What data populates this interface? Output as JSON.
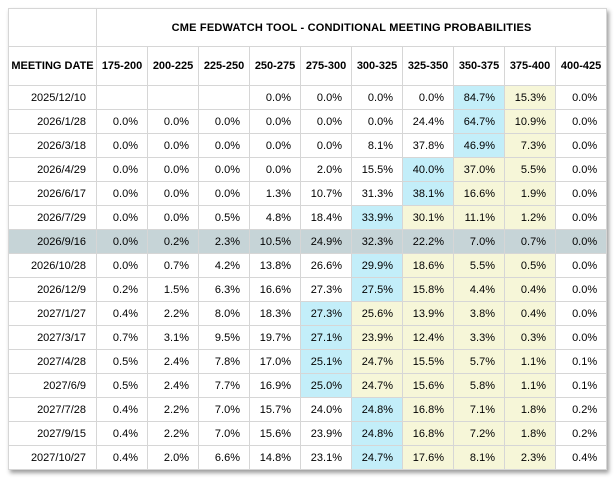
{
  "table": {
    "title": "CME FEDWATCH TOOL - CONDITIONAL MEETING PROBABILITIES",
    "date_header": "MEETING DATE",
    "rate_headers": [
      "175-200",
      "200-225",
      "225-250",
      "250-275",
      "275-300",
      "300-325",
      "325-350",
      "350-375",
      "375-400",
      "400-425"
    ],
    "colors": {
      "highlight_max": "#c3eef9",
      "highlight_tail": "#f6f6d8",
      "highlight_row": "#c6d4d7",
      "border": "#d6d6d6",
      "text": "#000000"
    },
    "rows": [
      {
        "date": "2025/12/10",
        "selected": false,
        "values": [
          "",
          "",
          "",
          "0.0%",
          "0.0%",
          "0.0%",
          "0.0%",
          "84.7%",
          "15.3%",
          "0.0%"
        ],
        "highlights": [
          "",
          "",
          "",
          "",
          "",
          "",
          "",
          "max",
          "tail",
          ""
        ]
      },
      {
        "date": "2026/1/28",
        "selected": false,
        "values": [
          "0.0%",
          "0.0%",
          "0.0%",
          "0.0%",
          "0.0%",
          "0.0%",
          "24.4%",
          "64.7%",
          "10.9%",
          "0.0%"
        ],
        "highlights": [
          "",
          "",
          "",
          "",
          "",
          "",
          "",
          "max",
          "tail",
          ""
        ]
      },
      {
        "date": "2026/3/18",
        "selected": false,
        "values": [
          "0.0%",
          "0.0%",
          "0.0%",
          "0.0%",
          "0.0%",
          "8.1%",
          "37.8%",
          "46.9%",
          "7.3%",
          "0.0%"
        ],
        "highlights": [
          "",
          "",
          "",
          "",
          "",
          "",
          "",
          "max",
          "tail",
          ""
        ]
      },
      {
        "date": "2026/4/29",
        "selected": false,
        "values": [
          "0.0%",
          "0.0%",
          "0.0%",
          "0.0%",
          "2.0%",
          "15.5%",
          "40.0%",
          "37.0%",
          "5.5%",
          "0.0%"
        ],
        "highlights": [
          "",
          "",
          "",
          "",
          "",
          "",
          "max",
          "tail",
          "tail",
          ""
        ]
      },
      {
        "date": "2026/6/17",
        "selected": false,
        "values": [
          "0.0%",
          "0.0%",
          "0.0%",
          "1.3%",
          "10.7%",
          "31.3%",
          "38.1%",
          "16.6%",
          "1.9%",
          "0.0%"
        ],
        "highlights": [
          "",
          "",
          "",
          "",
          "",
          "",
          "max",
          "tail",
          "tail",
          ""
        ]
      },
      {
        "date": "2026/7/29",
        "selected": false,
        "values": [
          "0.0%",
          "0.0%",
          "0.5%",
          "4.8%",
          "18.4%",
          "33.9%",
          "30.1%",
          "11.1%",
          "1.2%",
          "0.0%"
        ],
        "highlights": [
          "",
          "",
          "",
          "",
          "",
          "max",
          "tail",
          "tail",
          "tail",
          ""
        ]
      },
      {
        "date": "2026/9/16",
        "selected": true,
        "values": [
          "0.0%",
          "0.2%",
          "2.3%",
          "10.5%",
          "24.9%",
          "32.3%",
          "22.2%",
          "7.0%",
          "0.7%",
          "0.0%"
        ],
        "highlights": [
          "",
          "",
          "",
          "",
          "",
          "max",
          "tail",
          "tail",
          "tail",
          ""
        ]
      },
      {
        "date": "2026/10/28",
        "selected": false,
        "values": [
          "0.0%",
          "0.7%",
          "4.2%",
          "13.8%",
          "26.6%",
          "29.9%",
          "18.6%",
          "5.5%",
          "0.5%",
          "0.0%"
        ],
        "highlights": [
          "",
          "",
          "",
          "",
          "",
          "max",
          "tail",
          "tail",
          "tail",
          ""
        ]
      },
      {
        "date": "2026/12/9",
        "selected": false,
        "values": [
          "0.2%",
          "1.5%",
          "6.3%",
          "16.6%",
          "27.3%",
          "27.5%",
          "15.8%",
          "4.4%",
          "0.4%",
          "0.0%"
        ],
        "highlights": [
          "",
          "",
          "",
          "",
          "",
          "max",
          "tail",
          "tail",
          "tail",
          ""
        ]
      },
      {
        "date": "2027/1/27",
        "selected": false,
        "values": [
          "0.4%",
          "2.2%",
          "8.0%",
          "18.3%",
          "27.3%",
          "25.6%",
          "13.9%",
          "3.8%",
          "0.4%",
          "0.0%"
        ],
        "highlights": [
          "",
          "",
          "",
          "",
          "max",
          "tail",
          "tail",
          "tail",
          "tail",
          ""
        ]
      },
      {
        "date": "2027/3/17",
        "selected": false,
        "values": [
          "0.7%",
          "3.1%",
          "9.5%",
          "19.7%",
          "27.1%",
          "23.9%",
          "12.4%",
          "3.3%",
          "0.3%",
          "0.0%"
        ],
        "highlights": [
          "",
          "",
          "",
          "",
          "max",
          "tail",
          "tail",
          "tail",
          "tail",
          ""
        ]
      },
      {
        "date": "2027/4/28",
        "selected": false,
        "values": [
          "0.5%",
          "2.4%",
          "7.8%",
          "17.0%",
          "25.1%",
          "24.7%",
          "15.5%",
          "5.7%",
          "1.1%",
          "0.1%"
        ],
        "highlights": [
          "",
          "",
          "",
          "",
          "max",
          "tail",
          "tail",
          "tail",
          "tail",
          ""
        ]
      },
      {
        "date": "2027/6/9",
        "selected": false,
        "values": [
          "0.5%",
          "2.4%",
          "7.7%",
          "16.9%",
          "25.0%",
          "24.7%",
          "15.6%",
          "5.8%",
          "1.1%",
          "0.1%"
        ],
        "highlights": [
          "",
          "",
          "",
          "",
          "max",
          "tail",
          "tail",
          "tail",
          "tail",
          ""
        ]
      },
      {
        "date": "2027/7/28",
        "selected": false,
        "values": [
          "0.4%",
          "2.2%",
          "7.0%",
          "15.7%",
          "24.0%",
          "24.8%",
          "16.8%",
          "7.1%",
          "1.8%",
          "0.2%"
        ],
        "highlights": [
          "",
          "",
          "",
          "",
          "",
          "max",
          "tail",
          "tail",
          "tail",
          ""
        ]
      },
      {
        "date": "2027/9/15",
        "selected": false,
        "values": [
          "0.4%",
          "2.2%",
          "7.0%",
          "15.6%",
          "23.9%",
          "24.8%",
          "16.8%",
          "7.2%",
          "1.8%",
          "0.2%"
        ],
        "highlights": [
          "",
          "",
          "",
          "",
          "",
          "max",
          "tail",
          "tail",
          "tail",
          ""
        ]
      },
      {
        "date": "2027/10/27",
        "selected": false,
        "values": [
          "0.4%",
          "2.0%",
          "6.6%",
          "14.8%",
          "23.1%",
          "24.7%",
          "17.6%",
          "8.1%",
          "2.3%",
          "0.4%"
        ],
        "highlights": [
          "",
          "",
          "",
          "",
          "",
          "max",
          "tail",
          "tail",
          "tail",
          ""
        ]
      }
    ]
  }
}
